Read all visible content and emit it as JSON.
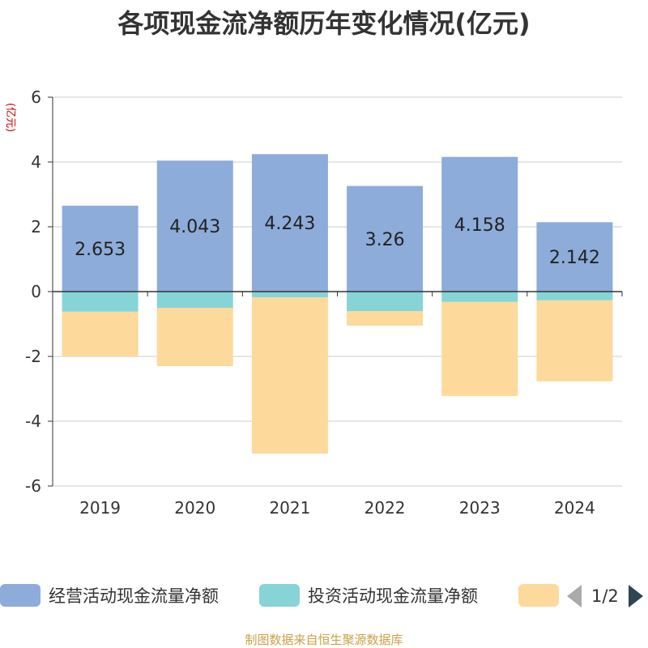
{
  "title": "各项现金流净额历年变化情况(亿元)",
  "source": "制图数据来自恒生聚源数据库",
  "legend": {
    "items": [
      {
        "name": "经营活动现金流量净额",
        "color": "#8eacd9"
      },
      {
        "name": "投资活动现金流量净额",
        "color": "#86d4d6"
      },
      {
        "name": "",
        "color": "#fdd99b"
      }
    ],
    "page": "1/2"
  },
  "chart_data": {
    "type": "bar",
    "stacked": true,
    "categories": [
      "2019",
      "2020",
      "2021",
      "2022",
      "2023",
      "2024"
    ],
    "ylabel": "(亿元)",
    "ylim": [
      -6,
      6
    ],
    "yticks": [
      -6,
      -4,
      -2,
      0,
      2,
      4,
      6
    ],
    "grid": true,
    "series": [
      {
        "name": "经营活动现金流量净额",
        "color": "#8eacd9",
        "values": [
          2.653,
          4.043,
          4.243,
          3.26,
          4.158,
          2.142
        ],
        "labels": [
          "2.653",
          "4.043",
          "4.243",
          "3.26",
          "4.158",
          "2.142"
        ]
      },
      {
        "name": "投资活动现金流量净额",
        "color": "#86d4d6",
        "values": [
          -0.62,
          -0.5,
          -0.18,
          -0.6,
          -0.32,
          -0.27
        ]
      },
      {
        "color": "#fdd99b",
        "values": [
          -1.38,
          -1.8,
          -4.82,
          -0.45,
          -2.9,
          -2.5
        ]
      }
    ]
  }
}
